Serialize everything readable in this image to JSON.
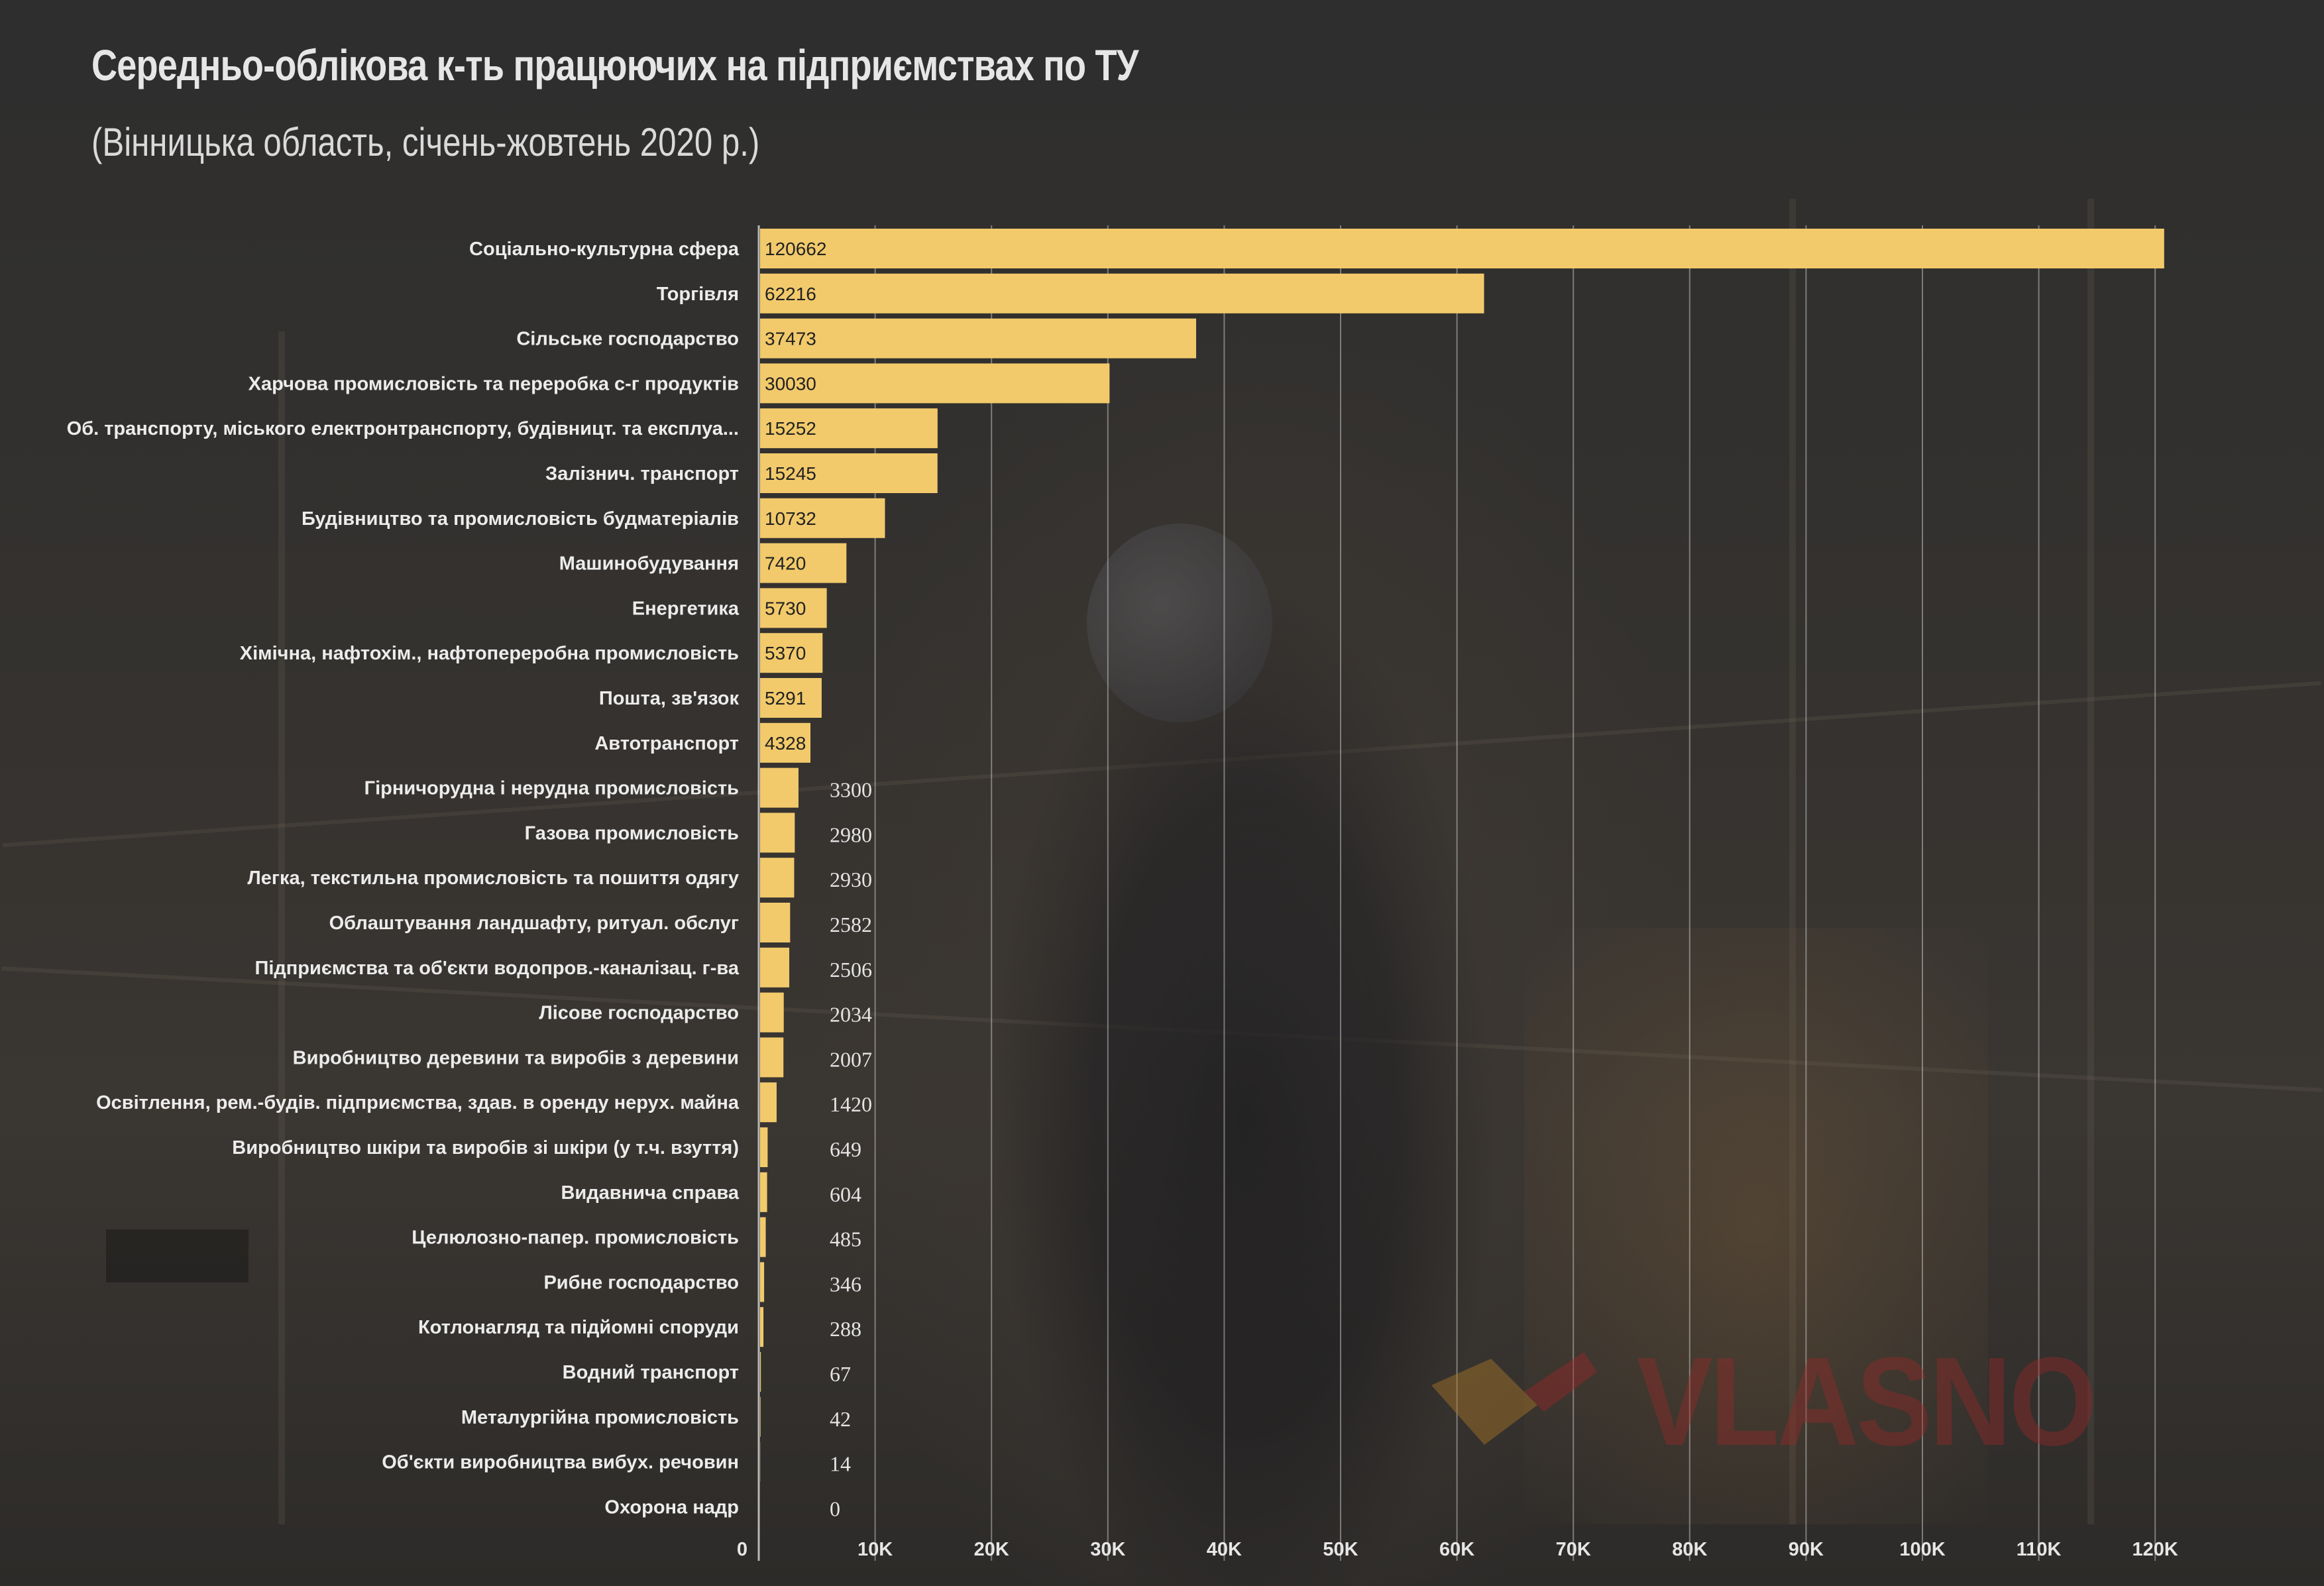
{
  "title": "Середньо-облікова к-ть працюючих на підприємствах по ТУ",
  "subtitle": "(Вінницька область, січень-жовтень 2020 р.)",
  "watermark": "VLASNO",
  "colors": {
    "bar": "#f2ca6b",
    "background": "#2f2f2f",
    "text": "#ececec"
  },
  "chart_data": {
    "type": "bar",
    "orientation": "horizontal",
    "title": "Середньо-облікова к-ть працюючих на підприємствах по ТУ",
    "subtitle": "(Вінницька область, січень-жовтень 2020 р.)",
    "xlabel": "",
    "ylabel": "",
    "xlim": [
      0,
      125000
    ],
    "grid": true,
    "legend": "none",
    "tick_values": [
      0,
      10000,
      20000,
      30000,
      40000,
      50000,
      60000,
      70000,
      80000,
      90000,
      100000,
      110000,
      120000
    ],
    "tick_labels": [
      "0",
      "10K",
      "20K",
      "30K",
      "40K",
      "50K",
      "60K",
      "70K",
      "80K",
      "90K",
      "100K",
      "110K",
      "120K"
    ],
    "categories": [
      "Соціально-культурна сфера",
      "Торгівля",
      "Сільське господарство",
      "Харчова промисловість та переробка с-г продуктів",
      "Об. транспорту, міського електронтранспорту, будівницт. та експлуа...",
      "Залізнич. транспорт",
      "Будівництво та промисловість будматеріалів",
      "Машинобудування",
      "Енергетика",
      "Хімічна, нафтохім., нафтопереробна промисловість",
      "Пошта, зв'язок",
      "Автотранспорт",
      "Гірничорудна і нерудна промисловість",
      "Газова промисловість",
      "Легка, текстильна промисловість та пошиття одягу",
      "Облаштування ландшафту, ритуал. обслуг",
      "Підприємства та об'єкти водопров.-каналізац. г-ва",
      "Лісове господарство",
      "Виробництво деревини та виробів з деревини",
      "Освітлення, рем.-будів. підприємства, здав. в оренду нерух. майна",
      "Виробництво шкіри та виробів зі шкіри (у т.ч. взуття)",
      "Видавнича справа",
      "Целюлозно-папер. промисловість",
      "Рибне господарство",
      "Котлонагляд та підйомні споруди",
      "Водний транспорт",
      "Металургійна промисловість",
      "Об'єкти виробництва вибух. речовин",
      "Охорона надр"
    ],
    "values": [
      120662,
      62216,
      37473,
      30030,
      15252,
      15245,
      10732,
      7420,
      5730,
      5370,
      5291,
      4328,
      3300,
      2980,
      2930,
      2582,
      2506,
      2034,
      2007,
      1420,
      649,
      604,
      485,
      346,
      288,
      67,
      42,
      14,
      0
    ],
    "value_labels": [
      "120662",
      "62216",
      "37473",
      "30030",
      "15252",
      "15245",
      "10732",
      "7420",
      "5730",
      "5370",
      "5291",
      "4328",
      "3300",
      "2980",
      "2930",
      "2582",
      "2506",
      "2034",
      "2007",
      "1420",
      "649",
      "604",
      "485",
      "346",
      "288",
      "67",
      "42",
      "14",
      "0"
    ]
  }
}
